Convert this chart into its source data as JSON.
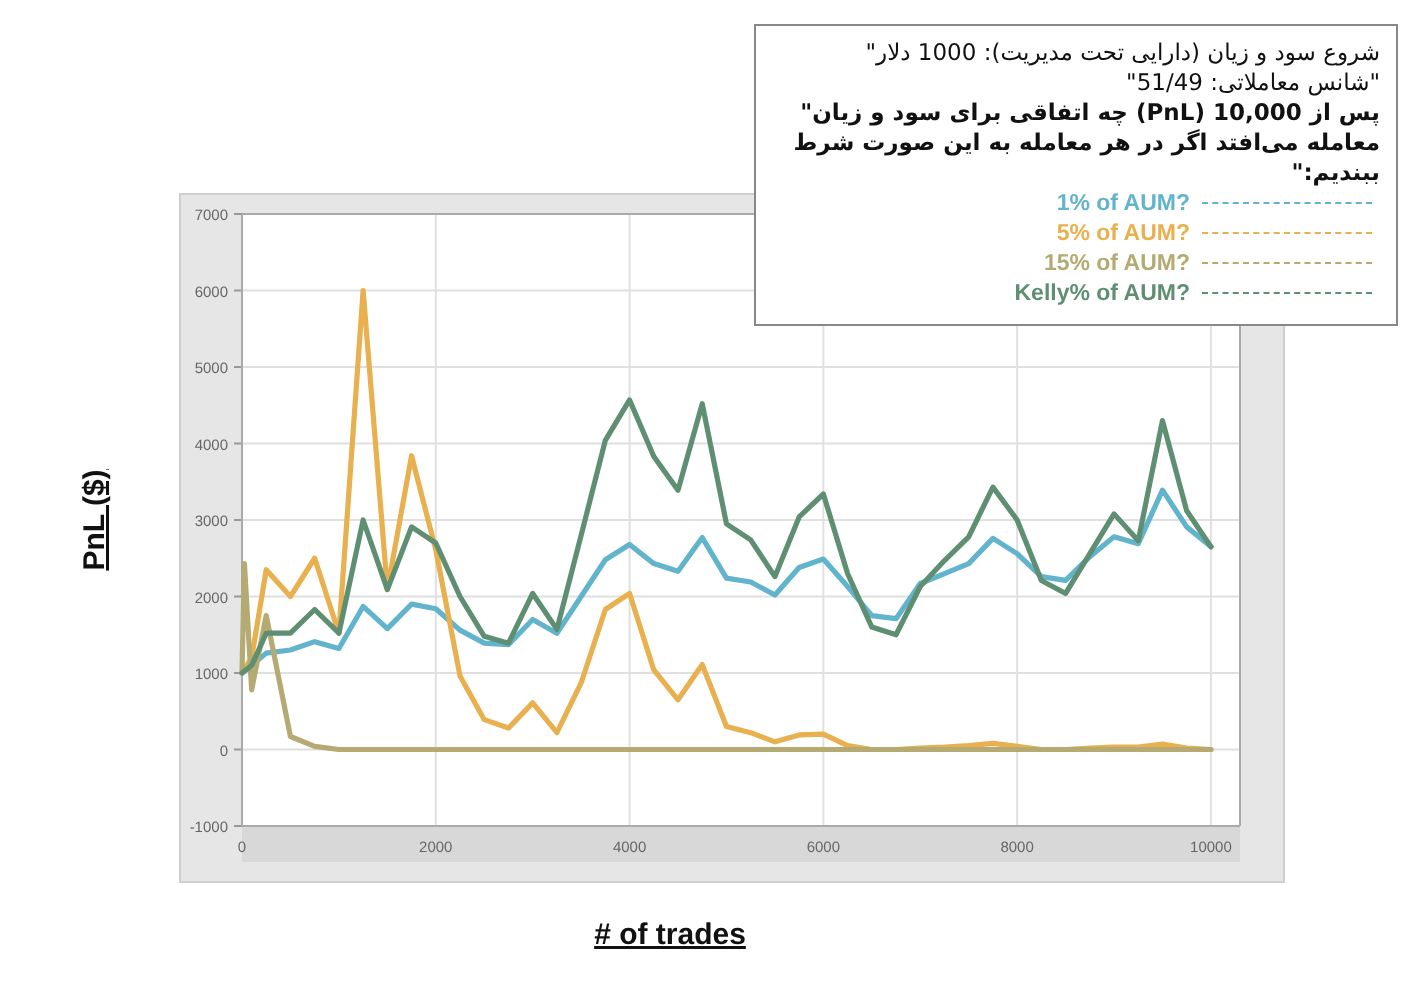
{
  "chart_data": {
    "type": "line",
    "legend_title": "شروع سود و زیان (دارایی تحت مدیریت): 1000 دلار\"\n\"شانس معاملاتی: 51/49\"\nپس از 10,000  (PnL) چه اتفاقی برای سود و زیان\"\nمعامله می‌افتد اگر در هر معامله به این صورت شرط\nببندیم:\"",
    "xlabel": "# of trades",
    "ylabel": "PnL ($)",
    "xlim": [
      0,
      10300
    ],
    "ylim": [
      -1000,
      7000
    ],
    "xticks": [
      0,
      2000,
      4000,
      6000,
      8000,
      10000
    ],
    "yticks": [
      -1000,
      0,
      1000,
      2000,
      3000,
      4000,
      5000,
      6000,
      7000
    ],
    "grid": true,
    "legend": "top right",
    "x": [
      0,
      100,
      250,
      500,
      750,
      1000,
      1250,
      1500,
      1750,
      2000,
      2250,
      2500,
      2750,
      3000,
      3250,
      3500,
      3750,
      4000,
      4250,
      4500,
      4750,
      5000,
      5250,
      5500,
      5750,
      6000,
      6250,
      6500,
      6750,
      7000,
      7250,
      7500,
      7750,
      8000,
      8250,
      8500,
      8750,
      9000,
      9250,
      9500,
      9750,
      10000
    ],
    "series": [
      {
        "name": "1% of AUM?",
        "color": "#62b4cc",
        "values": [
          1000,
          1100,
          1260,
          1300,
          1410,
          1320,
          1870,
          1580,
          1900,
          1840,
          1560,
          1390,
          1370,
          1700,
          1520,
          2000,
          2480,
          2680,
          2430,
          2330,
          2770,
          2240,
          2190,
          2020,
          2380,
          2490,
          2130,
          1750,
          1710,
          2170,
          2300,
          2430,
          2760,
          2560,
          2260,
          2210,
          2520,
          2780,
          2690,
          3390,
          2910,
          2650
        ]
      },
      {
        "name": "5% of AUM?",
        "color": "#e8b04e",
        "values": [
          1000,
          1200,
          2350,
          2000,
          2500,
          1520,
          6000,
          2090,
          3840,
          2610,
          960,
          390,
          280,
          610,
          220,
          870,
          1830,
          2040,
          1040,
          650,
          1110,
          300,
          220,
          100,
          190,
          200,
          50,
          0,
          0,
          20,
          30,
          50,
          80,
          40,
          0,
          0,
          20,
          30,
          30,
          70,
          20,
          0
        ]
      },
      {
        "name": "15% of AUM?",
        "color": "#b5aa72",
        "x": [
          0,
          25,
          100,
          250,
          500,
          750,
          1000,
          10000
        ],
        "values": [
          1000,
          2430,
          780,
          1750,
          170,
          40,
          0,
          0
        ]
      },
      {
        "name": "Kelly% of AUM?",
        "color": "#5f8f72",
        "values": [
          1000,
          1100,
          1520,
          1520,
          1830,
          1520,
          3000,
          2090,
          2910,
          2700,
          2000,
          1480,
          1390,
          2040,
          1570,
          2800,
          4040,
          4570,
          3830,
          3390,
          4520,
          2950,
          2740,
          2260,
          3040,
          3340,
          2300,
          1600,
          1500,
          2130,
          2470,
          2780,
          3430,
          3000,
          2210,
          2040,
          2560,
          3080,
          2730,
          4300,
          3120,
          2650
        ]
      }
    ]
  }
}
